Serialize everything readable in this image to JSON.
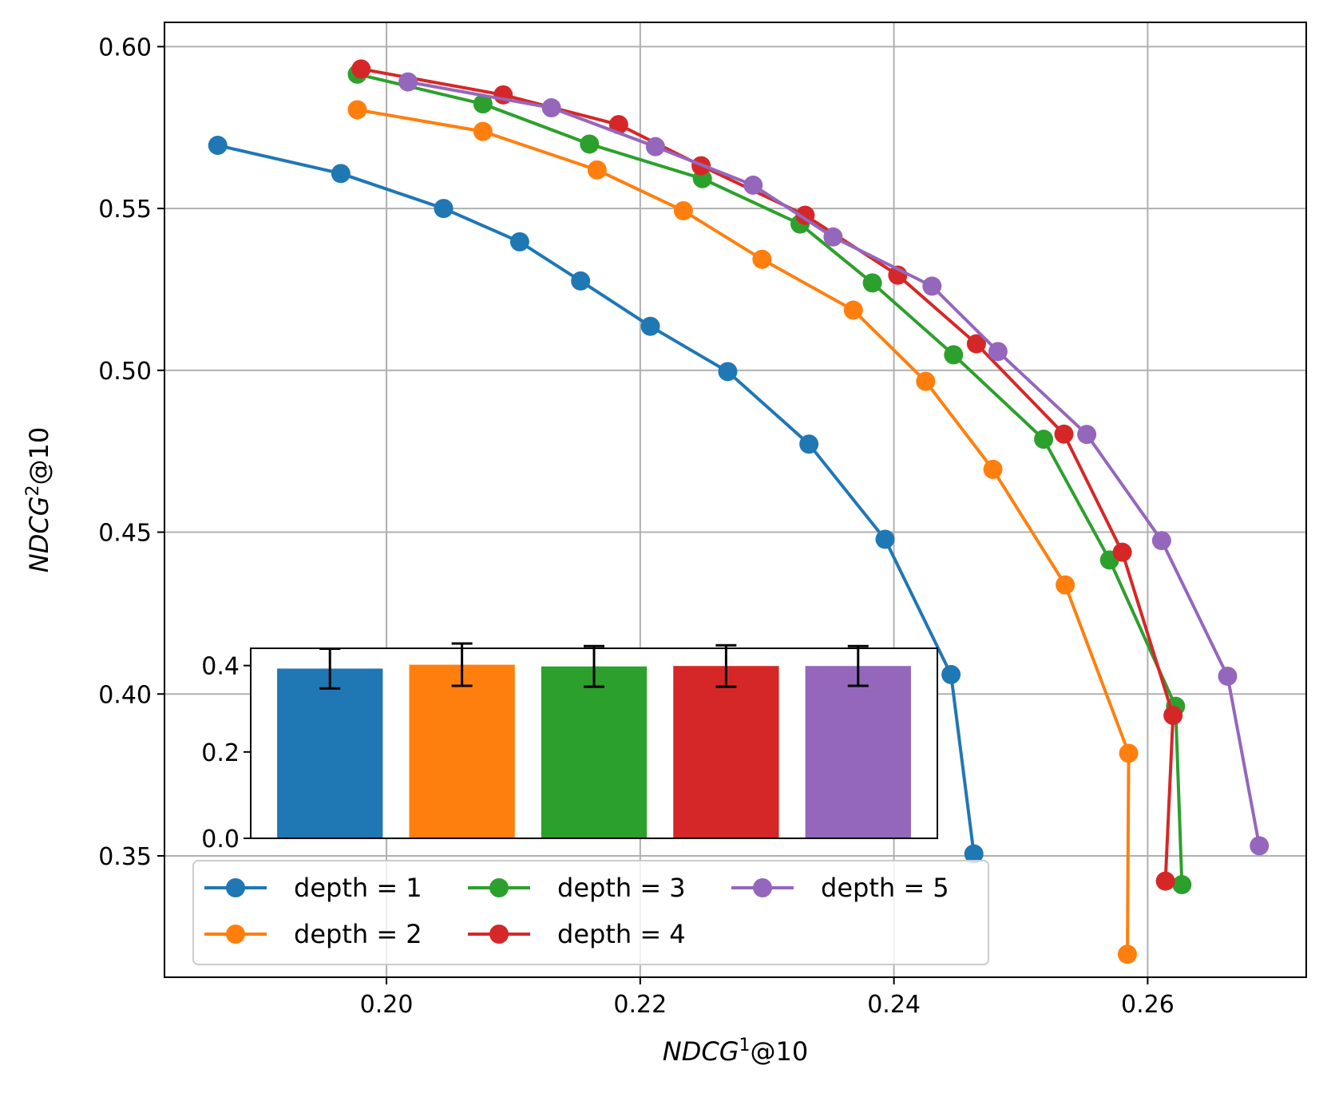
{
  "chart_data": [
    {
      "type": "line",
      "title": "",
      "xlabel": "NDCG",
      "xlabel_sup": "1",
      "xlabel_suffix": "@10",
      "ylabel": "NDCG",
      "ylabel_sup": "2",
      "ylabel_suffix": "@10",
      "xlim": [
        0.1825,
        0.2725
      ],
      "ylim": [
        0.3125,
        0.6075
      ],
      "grid": true,
      "legend_position": "lower-left",
      "xticks": [
        0.2,
        0.22,
        0.24,
        0.26
      ],
      "xtick_labels": [
        "0.20",
        "0.22",
        "0.24",
        "0.26"
      ],
      "yticks": [
        0.35,
        0.4,
        0.45,
        0.5,
        0.55,
        0.6
      ],
      "ytick_labels": [
        "0.35",
        "0.40",
        "0.45",
        "0.50",
        "0.55",
        "0.60"
      ],
      "series": [
        {
          "name": "depth = 1",
          "color": "#1f77b4",
          "points": [
            [
              0.1867,
              0.5695
            ],
            [
              0.1964,
              0.5608
            ],
            [
              0.2045,
              0.55
            ],
            [
              0.2105,
              0.5397
            ],
            [
              0.2153,
              0.5276
            ],
            [
              0.2208,
              0.5136
            ],
            [
              0.2269,
              0.4996
            ],
            [
              0.2333,
              0.4772
            ],
            [
              0.2393,
              0.4478
            ],
            [
              0.2445,
              0.406
            ],
            [
              0.2463,
              0.3506
            ]
          ]
        },
        {
          "name": "depth = 2",
          "color": "#ff7f0e",
          "points": [
            [
              0.1977,
              0.5805
            ],
            [
              0.2076,
              0.5738
            ],
            [
              0.2166,
              0.5619
            ],
            [
              0.2234,
              0.5493
            ],
            [
              0.2296,
              0.5343
            ],
            [
              0.2368,
              0.5186
            ],
            [
              0.2425,
              0.4966
            ],
            [
              0.2478,
              0.4694
            ],
            [
              0.2535,
              0.4337
            ],
            [
              0.2585,
              0.3817
            ],
            [
              0.2584,
              0.3196
            ]
          ]
        },
        {
          "name": "depth = 3",
          "color": "#2ca02c",
          "points": [
            [
              0.1977,
              0.5915
            ],
            [
              0.2076,
              0.5823
            ],
            [
              0.216,
              0.5699
            ],
            [
              0.2249,
              0.5592
            ],
            [
              0.2326,
              0.5452
            ],
            [
              0.2383,
              0.527
            ],
            [
              0.2447,
              0.5048
            ],
            [
              0.2518,
              0.4787
            ],
            [
              0.257,
              0.4414
            ],
            [
              0.2622,
              0.3962
            ],
            [
              0.2627,
              0.3411
            ]
          ]
        },
        {
          "name": "depth = 4",
          "color": "#d62728",
          "points": [
            [
              0.198,
              0.5931
            ],
            [
              0.2092,
              0.5851
            ],
            [
              0.2183,
              0.5759
            ],
            [
              0.2248,
              0.5632
            ],
            [
              0.233,
              0.5479
            ],
            [
              0.2403,
              0.5294
            ],
            [
              0.2465,
              0.5082
            ],
            [
              0.2534,
              0.4803
            ],
            [
              0.258,
              0.4438
            ],
            [
              0.262,
              0.3934
            ],
            [
              0.2614,
              0.3422
            ]
          ]
        },
        {
          "name": "depth = 5",
          "color": "#9467bd",
          "points": [
            [
              0.2017,
              0.5891
            ],
            [
              0.213,
              0.5811
            ],
            [
              0.2212,
              0.5691
            ],
            [
              0.2289,
              0.5572
            ],
            [
              0.2352,
              0.5412
            ],
            [
              0.243,
              0.526
            ],
            [
              0.2482,
              0.5058
            ],
            [
              0.2552,
              0.4802
            ],
            [
              0.2611,
              0.4474
            ],
            [
              0.2663,
              0.4055
            ],
            [
              0.2688,
              0.3531
            ]
          ]
        }
      ]
    },
    {
      "type": "bar",
      "title": "",
      "xlabel": "",
      "ylabel": "",
      "ylim": [
        0,
        0.44
      ],
      "grid": false,
      "yticks": [
        0.0,
        0.2,
        0.4
      ],
      "ytick_labels": [
        "0.0",
        "0.2",
        "0.4"
      ],
      "categories": [
        "depth = 1",
        "depth = 2",
        "depth = 3",
        "depth = 4",
        "depth = 5"
      ],
      "colors": [
        "#1f77b4",
        "#ff7f0e",
        "#2ca02c",
        "#d62728",
        "#9467bd"
      ],
      "values": [
        0.393,
        0.402,
        0.398,
        0.399,
        0.399
      ],
      "errors": [
        0.046,
        0.049,
        0.047,
        0.048,
        0.046
      ]
    }
  ]
}
